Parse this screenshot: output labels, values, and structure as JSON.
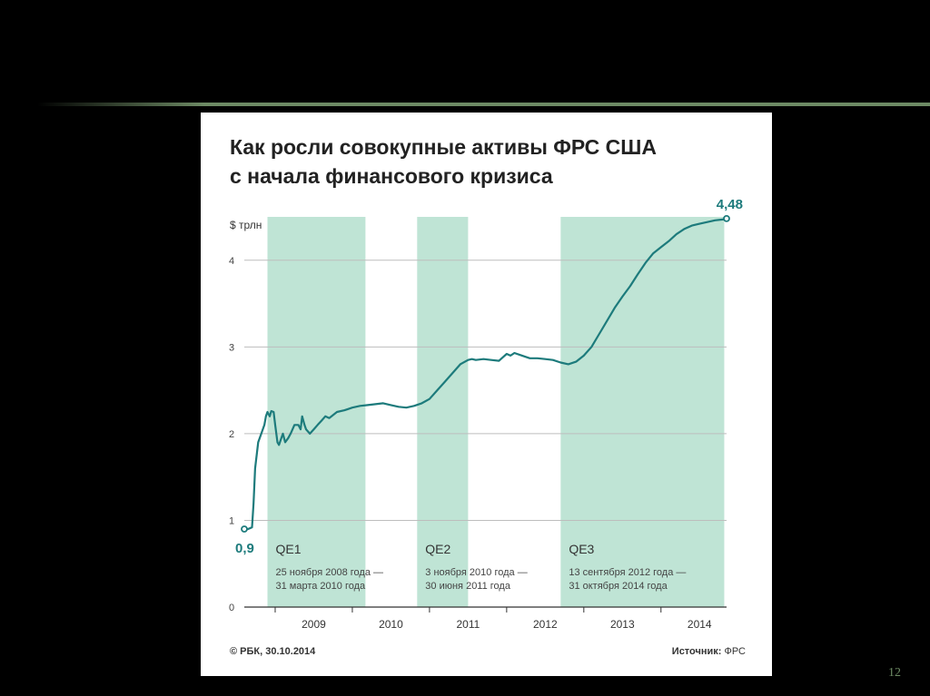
{
  "slide": {
    "number": "12"
  },
  "chart_data": {
    "type": "line",
    "title_lines": [
      "Как росли совокупные активы ФРС США",
      "с начала финансового кризиса"
    ],
    "ylabel": "$ трлн",
    "ylim": [
      0,
      4.5
    ],
    "yticks": [
      "0",
      "1",
      "2",
      "3",
      "4"
    ],
    "xlim": [
      2008.6,
      2014.85
    ],
    "xticks": [
      {
        "label": "2009",
        "x": 2009.0
      },
      {
        "label": "2010",
        "x": 2010.0
      },
      {
        "label": "2011",
        "x": 2011.0
      },
      {
        "label": "2012",
        "x": 2012.0
      },
      {
        "label": "2013",
        "x": 2013.0
      },
      {
        "label": "2014",
        "x": 2014.0
      }
    ],
    "grid": true,
    "line_color": "#1d7b7c",
    "band_color": "#bfe4d5",
    "bands": [
      {
        "name": "QE1",
        "start": 2008.9,
        "end": 2010.17,
        "dates_line1": "25 ноября 2008 года —",
        "dates_line2": "31 марта 2010 года"
      },
      {
        "name": "QE2",
        "start": 2010.84,
        "end": 2011.5,
        "dates_line1": "3 ноября 2010 года —",
        "dates_line2": "30 июня 2011 года"
      },
      {
        "name": "QE3",
        "start": 2012.7,
        "end": 2014.82,
        "dates_line1": "13 сентября 2012 года —",
        "dates_line2": "31 октября 2014 года"
      }
    ],
    "start_label": "0,9",
    "end_label": "4,48",
    "series": [
      {
        "x": [
          2008.6,
          2008.65,
          2008.7,
          2008.72,
          2008.74,
          2008.78,
          2008.82,
          2008.86,
          2008.88,
          2008.9,
          2008.93,
          2008.95,
          2008.98,
          2009.0,
          2009.03,
          2009.05,
          2009.08,
          2009.1,
          2009.13,
          2009.17,
          2009.2,
          2009.25,
          2009.3,
          2009.33,
          2009.35,
          2009.38,
          2009.4,
          2009.45,
          2009.5,
          2009.55,
          2009.6,
          2009.65,
          2009.7,
          2009.8,
          2009.9,
          2010.0,
          2010.1,
          2010.2,
          2010.3,
          2010.4,
          2010.5,
          2010.6,
          2010.7,
          2010.8,
          2010.9,
          2011.0,
          2011.1,
          2011.2,
          2011.3,
          2011.4,
          2011.5,
          2011.55,
          2011.6,
          2011.7,
          2011.8,
          2011.9,
          2011.95,
          2012.0,
          2012.05,
          2012.1,
          2012.2,
          2012.3,
          2012.4,
          2012.5,
          2012.6,
          2012.7,
          2012.8,
          2012.9,
          2013.0,
          2013.1,
          2013.2,
          2013.3,
          2013.4,
          2013.5,
          2013.6,
          2013.7,
          2013.8,
          2013.9,
          2014.0,
          2014.1,
          2014.2,
          2014.3,
          2014.4,
          2014.5,
          2014.6,
          2014.7,
          2014.8,
          2014.85
        ],
        "y": [
          0.9,
          0.9,
          0.92,
          1.2,
          1.6,
          1.9,
          2.0,
          2.1,
          2.2,
          2.25,
          2.2,
          2.26,
          2.25,
          2.1,
          1.9,
          1.87,
          1.95,
          2.0,
          1.9,
          1.95,
          2.0,
          2.1,
          2.1,
          2.05,
          2.2,
          2.1,
          2.05,
          2.0,
          2.05,
          2.1,
          2.15,
          2.2,
          2.18,
          2.25,
          2.27,
          2.3,
          2.32,
          2.33,
          2.34,
          2.35,
          2.33,
          2.31,
          2.3,
          2.32,
          2.35,
          2.4,
          2.5,
          2.6,
          2.7,
          2.8,
          2.85,
          2.86,
          2.85,
          2.86,
          2.85,
          2.84,
          2.88,
          2.92,
          2.9,
          2.93,
          2.9,
          2.87,
          2.87,
          2.86,
          2.85,
          2.82,
          2.8,
          2.83,
          2.9,
          3.0,
          3.15,
          3.3,
          3.45,
          3.58,
          3.7,
          3.84,
          3.97,
          4.08,
          4.15,
          4.22,
          4.3,
          4.36,
          4.4,
          4.42,
          4.44,
          4.46,
          4.47,
          4.48
        ]
      }
    ],
    "footer_left": "© РБК, 30.10.2014",
    "footer_source_label": "Источник:",
    "footer_source_value": "ФРС"
  }
}
